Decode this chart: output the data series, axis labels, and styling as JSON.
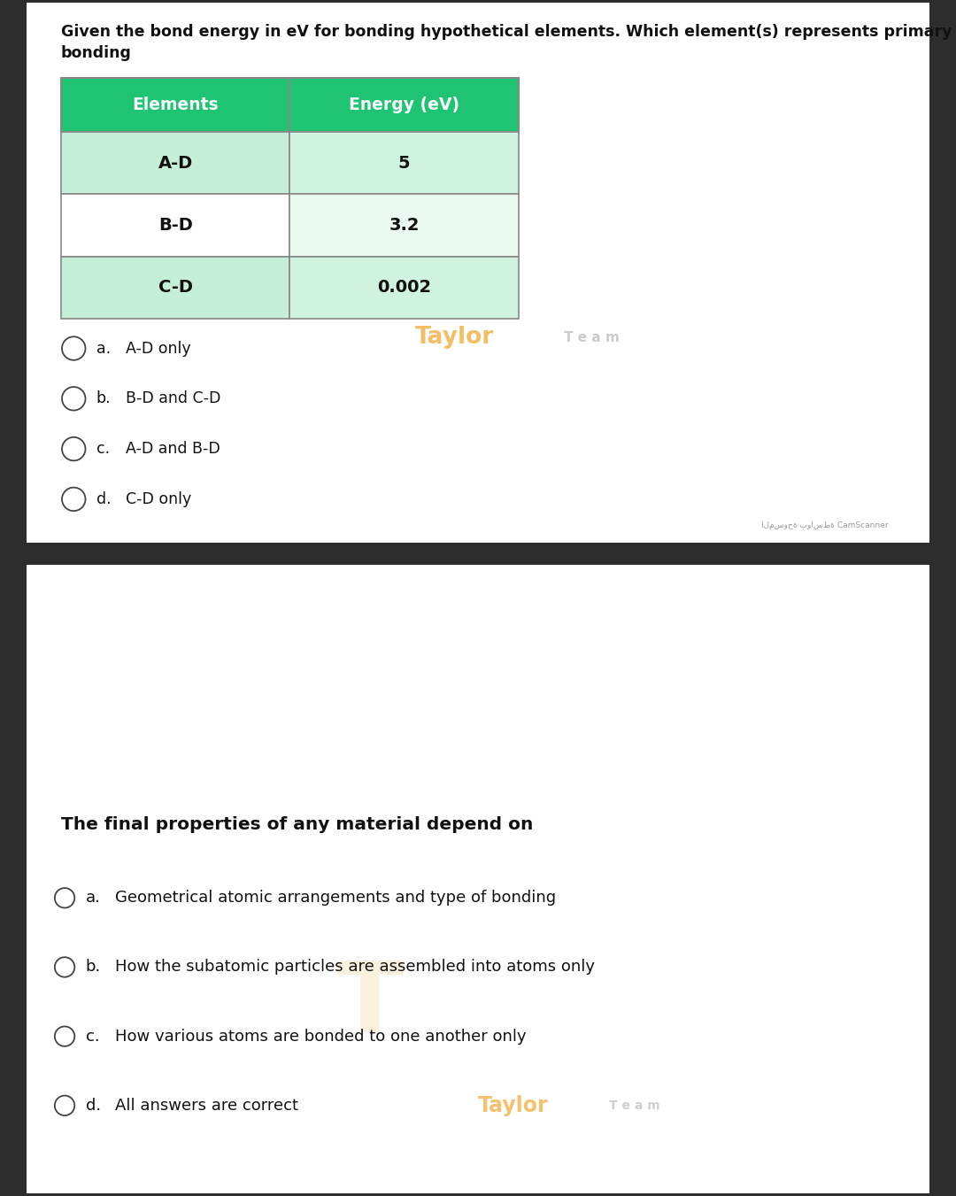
{
  "page1_question": "Given the bond energy in eV for bonding hypothetical elements. Which element(s) represents primary\nbonding",
  "table_header": [
    "Elements",
    "Energy (eV)"
  ],
  "table_rows": [
    [
      "A-D",
      "5"
    ],
    [
      "B-D",
      "3.2"
    ],
    [
      "C-D",
      "0.002"
    ]
  ],
  "header_bg": "#1fc472",
  "header_text": "#ffffff",
  "row1_bg_left": "#c5eed8",
  "row1_bg_right": "#d0f2e0",
  "row2_bg_left": "#ffffff",
  "row2_bg_right": "#eaf9f0",
  "row3_bg_left": "#c5eed8",
  "row3_bg_right": "#d0f2e0",
  "table_border": "#888888",
  "q1_options": [
    [
      "a.",
      "A-D only"
    ],
    [
      "b.",
      "B-D and C-D"
    ],
    [
      "c.",
      "A-D and B-D"
    ],
    [
      "d.",
      "C-D only"
    ]
  ],
  "camscanner_text": "المسوحة بواسطة CamScanner",
  "page2_question": "The final properties of any material depend on",
  "q2_options": [
    [
      "a.",
      "Geometrical atomic arrangements and type of bonding"
    ],
    [
      "b.",
      "How the subatomic particles are assembled into atoms only"
    ],
    [
      "c.",
      "How various atoms are bonded to one another only"
    ],
    [
      "d.",
      "All answers are correct"
    ]
  ],
  "outer_bg": "#2d2d2d",
  "page_bg": "#ffffff",
  "text_color": "#111111",
  "option_letter_color": "#333333",
  "circle_color": "#444444",
  "taylor_orange": "#f0a830",
  "taylor_grey": "#b0b0b0",
  "separator_bg": "#333333"
}
